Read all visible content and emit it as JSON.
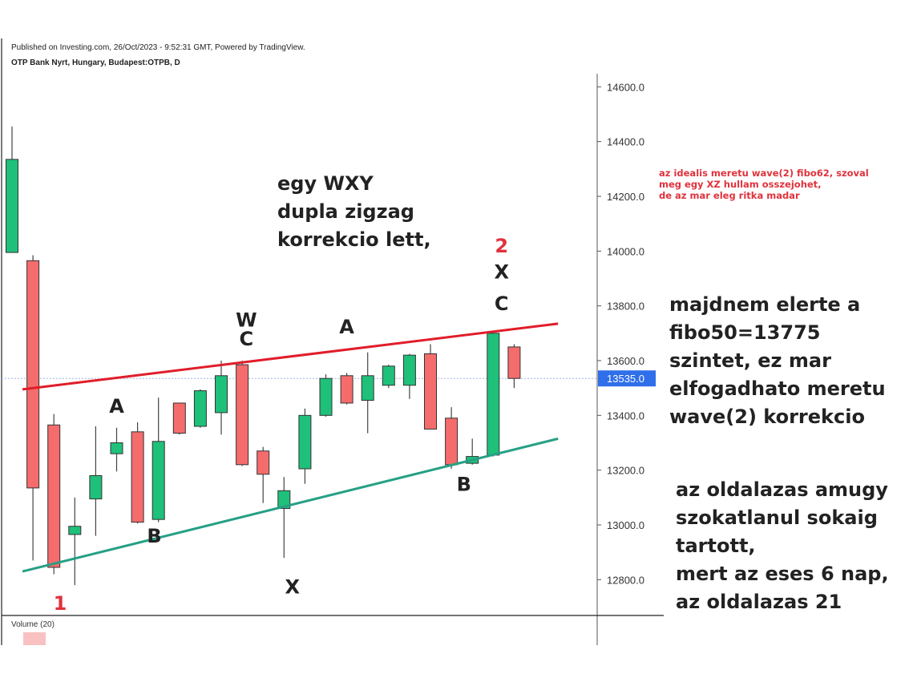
{
  "header": {
    "published": "Published on Investing.com, 26/Oct/2023 - 9:52:31 GMT, Powered by TradingView.",
    "symbol": "OTP Bank Nyrt, Hungary, Budapest:OTPB, D"
  },
  "volume_label": "Volume (20)",
  "colors": {
    "up": "#1fc07a",
    "down": "#f56c6c",
    "resistance": "#e11d2a",
    "support": "#26a085",
    "price_badge": "#2f6fea",
    "count_label": "#e0323c"
  },
  "chart_data": {
    "type": "candlestick",
    "yaxis": {
      "ticks": [
        "12800.0",
        "13000.0",
        "13200.0",
        "13400.0",
        "13600.0",
        "13800.0",
        "14000.0",
        "14200.0",
        "14400.0",
        "14600.0"
      ],
      "ylim": [
        12700,
        14655
      ]
    },
    "last_price": "13535.0",
    "candles": [
      {
        "o": 13995,
        "c": 14335,
        "h": 14455,
        "l": 13995
      },
      {
        "o": 13965,
        "c": 13135,
        "h": 13985,
        "l": 12870
      },
      {
        "o": 13365,
        "c": 12845,
        "h": 13405,
        "l": 12820
      },
      {
        "o": 12965,
        "c": 12995,
        "h": 13100,
        "l": 12780
      },
      {
        "o": 13095,
        "c": 13180,
        "h": 13360,
        "l": 12960
      },
      {
        "o": 13260,
        "c": 13300,
        "h": 13355,
        "l": 13195
      },
      {
        "o": 13340,
        "c": 13010,
        "h": 13375,
        "l": 13005
      },
      {
        "o": 13020,
        "c": 13305,
        "h": 13465,
        "l": 13010
      },
      {
        "o": 13445,
        "c": 13335,
        "h": 13445,
        "l": 13330
      },
      {
        "o": 13360,
        "c": 13490,
        "h": 13495,
        "l": 13355
      },
      {
        "o": 13410,
        "c": 13545,
        "h": 13600,
        "l": 13330
      },
      {
        "o": 13585,
        "c": 13220,
        "h": 13600,
        "l": 13215
      },
      {
        "o": 13270,
        "c": 13185,
        "h": 13285,
        "l": 13080
      },
      {
        "o": 13060,
        "c": 13125,
        "h": 13175,
        "l": 12880
      },
      {
        "o": 13205,
        "c": 13400,
        "h": 13425,
        "l": 13150
      },
      {
        "o": 13400,
        "c": 13535,
        "h": 13550,
        "l": 13395
      },
      {
        "o": 13545,
        "c": 13445,
        "h": 13555,
        "l": 13440
      },
      {
        "o": 13455,
        "c": 13545,
        "h": 13630,
        "l": 13335
      },
      {
        "o": 13510,
        "c": 13580,
        "h": 13585,
        "l": 13500
      },
      {
        "o": 13510,
        "c": 13620,
        "h": 13625,
        "l": 13460
      },
      {
        "o": 13625,
        "c": 13350,
        "h": 13660,
        "l": 13350
      },
      {
        "o": 13390,
        "c": 13220,
        "h": 13430,
        "l": 13205
      },
      {
        "o": 13225,
        "c": 13250,
        "h": 13315,
        "l": 13220
      },
      {
        "o": 13255,
        "c": 13700,
        "h": 13700,
        "l": 13250
      },
      {
        "o": 13650,
        "c": 13535,
        "h": 13660,
        "l": 13500
      }
    ],
    "trendlines": [
      {
        "name": "resistance",
        "from": {
          "i": 0.5,
          "y": 13495
        },
        "to": {
          "i": 26.1,
          "y": 13735
        }
      },
      {
        "name": "support",
        "from": {
          "i": 0.5,
          "y": 12830
        },
        "to": {
          "i": 26.1,
          "y": 13315
        }
      }
    ],
    "wave_labels": [
      {
        "text": "1",
        "i": 2.3,
        "y": 12690,
        "color": "count_label"
      },
      {
        "text": "A",
        "i": 5.0,
        "y": 13410
      },
      {
        "text": "B",
        "i": 6.8,
        "y": 12935
      },
      {
        "text": "W",
        "i": 11.2,
        "y": 13725
      },
      {
        "text": "C",
        "i": 11.2,
        "y": 13655
      },
      {
        "text": "X",
        "i": 13.4,
        "y": 12750
      },
      {
        "text": "A",
        "i": 16.0,
        "y": 13700
      },
      {
        "text": "B",
        "i": 21.6,
        "y": 13125
      },
      {
        "text": "2",
        "i": 23.4,
        "y": 13995,
        "color": "count_label"
      },
      {
        "text": "X",
        "i": 23.4,
        "y": 13900
      },
      {
        "text": "C",
        "i": 23.4,
        "y": 13785
      }
    ]
  },
  "annotations": {
    "center": [
      "egy WXY",
      "dupla zigzag",
      "korrekcio lett,"
    ],
    "note": [
      "az idealis meretu wave(2) fibo62, szoval",
      "meg egy XZ hullam osszejohet,",
      "de az mar eleg ritka madar"
    ],
    "right_top": [
      "majdnem elerte a",
      "fibo50=13775",
      "szintet, ez mar",
      "elfogadhato meretu",
      "wave(2) korrekcio"
    ],
    "right_bottom": [
      "az oldalazas amugy",
      "szokatlanul sokaig",
      "tartott,",
      "mert az eses 6 nap,",
      "az oldalazas 21"
    ]
  }
}
